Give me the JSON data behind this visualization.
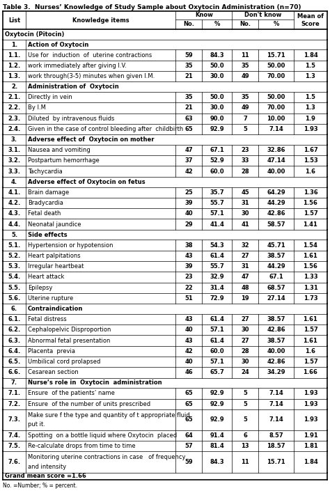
{
  "title": "Table 3.  Nurses’ Knowledge of Study Sample about Oxytocin Administration (n=70)",
  "footnote": "No. =Number; % = percent.",
  "grand_mean": "Grand mean score =1.66",
  "rows": [
    {
      "type": "section",
      "list": "",
      "text": "Oxytocin (Pitocin)"
    },
    {
      "type": "header_item",
      "list": "1.",
      "text": "Action of Oxytocin"
    },
    {
      "type": "data",
      "list": "1.1.",
      "text": "Use for  induction  of  uterine contractions",
      "know_no": "59",
      "know_pct": "84.3",
      "dk_no": "11",
      "dk_pct": "15.71",
      "mean": "1.84"
    },
    {
      "type": "data",
      "list": "1.2.",
      "text": "work immediately after giving I.V.",
      "know_no": "35",
      "know_pct": "50.0",
      "dk_no": "35",
      "dk_pct": "50.00",
      "mean": "1.5"
    },
    {
      "type": "data",
      "list": "1.3.",
      "text": "work through(3-5) minutes when given I.M.",
      "know_no": "21",
      "know_pct": "30.0",
      "dk_no": "49",
      "dk_pct": "70.00",
      "mean": "1.3"
    },
    {
      "type": "header_item",
      "list": "2.",
      "text": "Administration of  Oxytocin"
    },
    {
      "type": "data",
      "list": "2.1.",
      "text": "Directly in vein",
      "know_no": "35",
      "know_pct": "50.0",
      "dk_no": "35",
      "dk_pct": "50.00",
      "mean": "1.5"
    },
    {
      "type": "data",
      "list": "2.2.",
      "text": "By I.M",
      "know_no": "21",
      "know_pct": "30.0",
      "dk_no": "49",
      "dk_pct": "70.00",
      "mean": "1.3"
    },
    {
      "type": "data",
      "list": "2.3.",
      "text": "Diluted  by intravenous fluids",
      "know_no": "63",
      "know_pct": "90.0",
      "dk_no": "7",
      "dk_pct": "10.00",
      "mean": "1.9"
    },
    {
      "type": "data",
      "list": "2.4.",
      "text": "Given in the case of control bleeding after  childbirth",
      "know_no": "65",
      "know_pct": "92.9",
      "dk_no": "5",
      "dk_pct": "7.14",
      "mean": "1.93"
    },
    {
      "type": "header_item",
      "list": "3.",
      "text": "Adverse effect of  Oxytocin on mother"
    },
    {
      "type": "data",
      "list": "3.1.",
      "text": "Nausea and vomiting",
      "know_no": "47",
      "know_pct": "67.1",
      "dk_no": "23",
      "dk_pct": "32.86",
      "mean": "1.67"
    },
    {
      "type": "data",
      "list": "3.2.",
      "text": "Postpartum hemorrhage",
      "know_no": "37",
      "know_pct": "52.9",
      "dk_no": "33",
      "dk_pct": "47.14",
      "mean": "1.53"
    },
    {
      "type": "data",
      "list": "3.3.",
      "text": "Tachycardia",
      "know_no": "42",
      "know_pct": "60.0",
      "dk_no": "28",
      "dk_pct": "40.00",
      "mean": "1.6"
    },
    {
      "type": "header_item",
      "list": "4.",
      "text": "Adverse effect of Oxytocin on fetus"
    },
    {
      "type": "data",
      "list": "4.1.",
      "text": "Brain damage",
      "know_no": "25",
      "know_pct": "35.7",
      "dk_no": "45",
      "dk_pct": "64.29",
      "mean": "1.36"
    },
    {
      "type": "data",
      "list": "4.2.",
      "text": "Bradycardia",
      "know_no": "39",
      "know_pct": "55.7",
      "dk_no": "31",
      "dk_pct": "44.29",
      "mean": "1.56"
    },
    {
      "type": "data",
      "list": "4.3.",
      "text": "Fetal death",
      "know_no": "40",
      "know_pct": "57.1",
      "dk_no": "30",
      "dk_pct": "42.86",
      "mean": "1.57"
    },
    {
      "type": "data",
      "list": "4.4.",
      "text": "Neonatal jaundice",
      "know_no": "29",
      "know_pct": "41.4",
      "dk_no": "41",
      "dk_pct": "58.57",
      "mean": "1.41"
    },
    {
      "type": "header_item",
      "list": "5.",
      "text": "Side effects"
    },
    {
      "type": "data",
      "list": "5.1.",
      "text": "Hypertension or hypotension",
      "know_no": "38",
      "know_pct": "54.3",
      "dk_no": "32",
      "dk_pct": "45.71",
      "mean": "1.54"
    },
    {
      "type": "data",
      "list": "5.2.",
      "text": "Heart palpitations",
      "know_no": "43",
      "know_pct": "61.4",
      "dk_no": "27",
      "dk_pct": "38.57",
      "mean": "1.61"
    },
    {
      "type": "data",
      "list": "5.3.",
      "text": "Irregular heartbeat",
      "know_no": "39",
      "know_pct": "55.7",
      "dk_no": "31",
      "dk_pct": "44.29",
      "mean": "1.56"
    },
    {
      "type": "data",
      "list": "5.4.",
      "text": "Heart attack",
      "know_no": "23",
      "know_pct": "32.9",
      "dk_no": "47",
      "dk_pct": "67.1",
      "mean": "1.33"
    },
    {
      "type": "data",
      "list": "5.5.",
      "text": "Epilepsy",
      "know_no": "22",
      "know_pct": "31.4",
      "dk_no": "48",
      "dk_pct": "68.57",
      "mean": "1.31"
    },
    {
      "type": "data",
      "list": "5.6.",
      "text": "Uterine rupture",
      "know_no": "51",
      "know_pct": "72.9",
      "dk_no": "19",
      "dk_pct": "27.14",
      "mean": "1.73"
    },
    {
      "type": "header_item",
      "list": "6.",
      "text": "Contraindication"
    },
    {
      "type": "data",
      "list": "6.1.",
      "text": "Fetal distress",
      "know_no": "43",
      "know_pct": "61.4",
      "dk_no": "27",
      "dk_pct": "38.57",
      "mean": "1.61"
    },
    {
      "type": "data",
      "list": "6.2.",
      "text": "Cephalopelvic Disproportion",
      "know_no": "40",
      "know_pct": "57.1",
      "dk_no": "30",
      "dk_pct": "42.86",
      "mean": "1.57"
    },
    {
      "type": "data",
      "list": "6.3.",
      "text": "Abnormal fetal presentation",
      "know_no": "43",
      "know_pct": "61.4",
      "dk_no": "27",
      "dk_pct": "38.57",
      "mean": "1.61"
    },
    {
      "type": "data",
      "list": "6.4.",
      "text": "Placenta  previa",
      "know_no": "42",
      "know_pct": "60.0",
      "dk_no": "28",
      "dk_pct": "40.00",
      "mean": "1.6"
    },
    {
      "type": "data",
      "list": "6.5.",
      "text": "Umbilical cord prolapsed",
      "know_no": "40",
      "know_pct": "57.1",
      "dk_no": "30",
      "dk_pct": "42.86",
      "mean": "1.57"
    },
    {
      "type": "data",
      "list": "6.6.",
      "text": "Cesarean section",
      "know_no": "46",
      "know_pct": "65.7",
      "dk_no": "24",
      "dk_pct": "34.29",
      "mean": "1.66"
    },
    {
      "type": "header_item",
      "list": "7.",
      "text": "Nurse’s role in  Oxytocin  administration"
    },
    {
      "type": "data",
      "list": "7.1.",
      "text": "Ensure  of the patients’ name",
      "know_no": "65",
      "know_pct": "92.9",
      "dk_no": "5",
      "dk_pct": "7.14",
      "mean": "1.93"
    },
    {
      "type": "data",
      "list": "7.2.",
      "text": "Ensure  of the number of units prescribed",
      "know_no": "65",
      "know_pct": "92.9",
      "dk_no": "5",
      "dk_pct": "7.14",
      "mean": "1.93"
    },
    {
      "type": "data_multiline",
      "list": "7.3.",
      "text": "Make sure f the type and quantity of t appropriate fluid\nput it.",
      "know_no": "65",
      "know_pct": "92.9",
      "dk_no": "5",
      "dk_pct": "7.14",
      "mean": "1.93"
    },
    {
      "type": "data",
      "list": "7.4.",
      "text": "Spotting  on a bottle liquid where Oxytocin  placed",
      "know_no": "64",
      "know_pct": "91.4",
      "dk_no": "6",
      "dk_pct": "8.57",
      "mean": "1.91"
    },
    {
      "type": "data",
      "list": "7.5.",
      "text": "Re-calculate drops from time to time",
      "know_no": "57",
      "know_pct": "81.4",
      "dk_no": "13",
      "dk_pct": "18.57",
      "mean": "1.81"
    },
    {
      "type": "data_multiline",
      "list": "7.6.",
      "text": "Monitoring uterine contractions in case   of frequency\nand intensity",
      "know_no": "59",
      "know_pct": "84.3",
      "dk_no": "11",
      "dk_pct": "15.71",
      "mean": "1.84"
    }
  ],
  "bg_color": "#ffffff",
  "border_color": "#000000",
  "font_size": 6.0,
  "title_font_size": 6.5
}
